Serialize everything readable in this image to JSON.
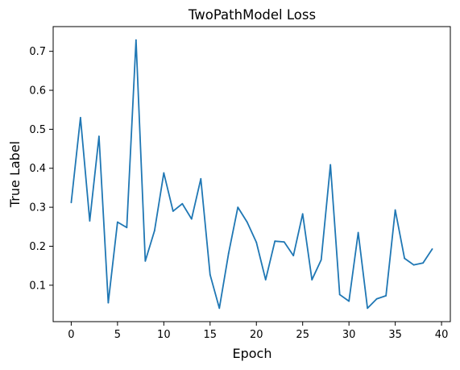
{
  "chart_data": {
    "type": "line",
    "title": "TwoPathModel Loss",
    "xlabel": "Epoch",
    "ylabel": "True Label",
    "x": [
      0,
      1,
      2,
      3,
      4,
      5,
      6,
      7,
      8,
      9,
      10,
      11,
      12,
      13,
      14,
      15,
      16,
      17,
      18,
      19,
      20,
      21,
      22,
      23,
      24,
      25,
      26,
      27,
      28,
      29,
      30,
      31,
      32,
      33,
      34,
      35,
      36,
      37,
      38,
      39
    ],
    "series": [
      {
        "name": "",
        "color": "#1f77b4",
        "values": [
          0.312,
          0.53,
          0.265,
          0.482,
          0.055,
          0.262,
          0.248,
          0.729,
          0.162,
          0.24,
          0.388,
          0.29,
          0.309,
          0.27,
          0.373,
          0.127,
          0.041,
          0.182,
          0.3,
          0.262,
          0.21,
          0.114,
          0.213,
          0.211,
          0.176,
          0.283,
          0.114,
          0.165,
          0.409,
          0.076,
          0.059,
          0.235,
          0.041,
          0.065,
          0.073,
          0.293,
          0.169,
          0.152,
          0.157,
          0.193
        ]
      }
    ],
    "xlim": [
      -1.95,
      40.95
    ],
    "ylim": [
      0.0066,
      0.7634
    ],
    "xticks": [
      "0",
      "5",
      "10",
      "15",
      "20",
      "25",
      "30",
      "35",
      "40"
    ],
    "yticks": [
      "0.1",
      "0.2",
      "0.3",
      "0.4",
      "0.5",
      "0.6",
      "0.7"
    ],
    "grid": false,
    "legend": "none"
  }
}
